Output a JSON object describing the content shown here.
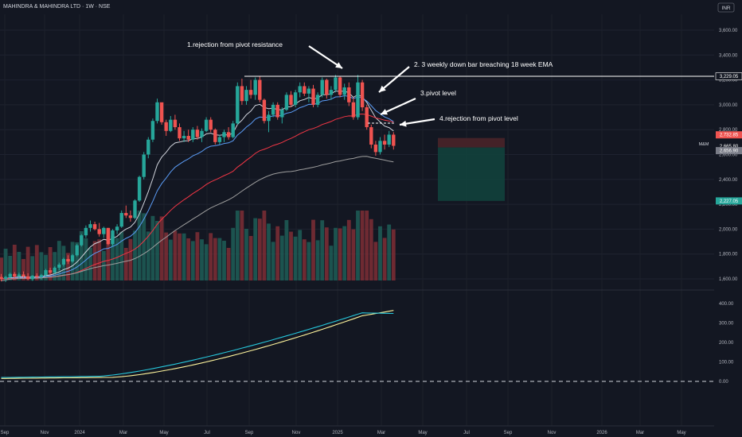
{
  "header": {
    "title": "MAHINDRA & MAHINDRA LTD · 1W · NSE",
    "currency": "INR",
    "symbol": "M&M"
  },
  "colors": {
    "bg": "#131722",
    "up": "#26a69a",
    "down": "#ef5350",
    "ema10": "#d1d4dc",
    "ema18": "#5b9cf6",
    "ema40": "#f23645",
    "ema100": "#9e9e9e",
    "rsiA": "#26c6da",
    "rsiB": "#fff59d"
  },
  "chart_data": {
    "type": "candlestick",
    "title": "MAHINDRA & MAHINDRA LTD · 1W · NSE",
    "price_axis": {
      "labels": [
        "3,600.00",
        "3,400.00",
        "3,200.00",
        "3,000.00",
        "2,800.00",
        "2,600.00",
        "2,400.00",
        "2,200.00",
        "2,000.00",
        "1,800.00",
        "1,600.00"
      ],
      "values": [
        3600,
        3400,
        3200,
        3000,
        2800,
        2600,
        2400,
        2200,
        2000,
        1800,
        1600
      ]
    },
    "indicator_axis": {
      "labels": [
        "400.00",
        "300.00",
        "200.00",
        "100.00",
        "0.00"
      ],
      "values": [
        400,
        300,
        200,
        100,
        0
      ]
    },
    "date_labels": [
      "Sep",
      "Nov",
      "2024",
      "Mar",
      "May",
      "Jul",
      "Sep",
      "Nov",
      "2025",
      "Mar",
      "May",
      "Jul",
      "Sep",
      "Nov",
      "2026",
      "Mar",
      "May"
    ],
    "price_tags": [
      {
        "label": "3,229.05",
        "value": 3229.05,
        "kind": "line"
      },
      {
        "label": "2,732.85",
        "value": 2732.85,
        "kind": "stop"
      },
      {
        "label": "2,665.80",
        "value": 2665.8,
        "kind": "last"
      },
      {
        "label": "2,656.90",
        "value": 2656.9,
        "kind": "entry"
      },
      {
        "label": "2,227.05",
        "value": 2227.05,
        "kind": "target"
      }
    ],
    "horizontal_line": 3229.05,
    "annotations": [
      {
        "text": "1.rejection from pivot resistance"
      },
      {
        "text": "2. 3 weekly down bar breaching 18 week EMA"
      },
      {
        "text": "3.pivot level"
      },
      {
        "text": "4.rejection from pivot  level"
      }
    ],
    "position": {
      "stop": 2732.85,
      "entry": 2656.9,
      "target": 2227.05
    },
    "candles": [
      [
        1615,
        1640,
        1580,
        1600
      ],
      [
        1600,
        1625,
        1575,
        1615
      ],
      [
        1615,
        1650,
        1600,
        1640
      ],
      [
        1640,
        1655,
        1605,
        1620
      ],
      [
        1620,
        1650,
        1600,
        1635
      ],
      [
        1635,
        1660,
        1610,
        1620
      ],
      [
        1620,
        1645,
        1590,
        1600
      ],
      [
        1600,
        1630,
        1585,
        1625
      ],
      [
        1625,
        1645,
        1600,
        1615
      ],
      [
        1615,
        1640,
        1595,
        1630
      ],
      [
        1630,
        1680,
        1615,
        1670
      ],
      [
        1670,
        1690,
        1640,
        1650
      ],
      [
        1650,
        1700,
        1640,
        1690
      ],
      [
        1690,
        1730,
        1670,
        1715
      ],
      [
        1715,
        1770,
        1700,
        1760
      ],
      [
        1760,
        1790,
        1720,
        1740
      ],
      [
        1740,
        1800,
        1730,
        1790
      ],
      [
        1790,
        1880,
        1780,
        1870
      ],
      [
        1870,
        1960,
        1860,
        1950
      ],
      [
        1950,
        2030,
        1930,
        2010
      ],
      [
        2010,
        2070,
        1980,
        2040
      ],
      [
        2040,
        2060,
        1990,
        2000
      ],
      [
        2000,
        2050,
        1940,
        1960
      ],
      [
        1960,
        2020,
        1930,
        2010
      ],
      [
        2010,
        2010,
        1870,
        1880
      ],
      [
        1880,
        2000,
        1860,
        1990
      ],
      [
        1990,
        2040,
        1960,
        2020
      ],
      [
        2020,
        2150,
        2010,
        2130
      ],
      [
        2130,
        2190,
        2090,
        2110
      ],
      [
        2110,
        2150,
        2060,
        2090
      ],
      [
        2090,
        2240,
        2080,
        2230
      ],
      [
        2230,
        2430,
        2220,
        2420
      ],
      [
        2420,
        2620,
        2400,
        2600
      ],
      [
        2600,
        2740,
        2570,
        2720
      ],
      [
        2720,
        2890,
        2700,
        2870
      ],
      [
        2870,
        3050,
        2850,
        3020
      ],
      [
        3020,
        3010,
        2840,
        2860
      ],
      [
        2860,
        2880,
        2750,
        2790
      ],
      [
        2790,
        2910,
        2780,
        2880
      ],
      [
        2880,
        2920,
        2800,
        2820
      ],
      [
        2820,
        2850,
        2710,
        2730
      ],
      [
        2730,
        2790,
        2700,
        2750
      ],
      [
        2750,
        2800,
        2700,
        2720
      ],
      [
        2720,
        2820,
        2700,
        2800
      ],
      [
        2800,
        2830,
        2720,
        2740
      ],
      [
        2740,
        2810,
        2700,
        2790
      ],
      [
        2790,
        2900,
        2780,
        2880
      ],
      [
        2880,
        2900,
        2780,
        2800
      ],
      [
        2800,
        2810,
        2680,
        2700
      ],
      [
        2700,
        2760,
        2680,
        2740
      ],
      [
        2740,
        2800,
        2700,
        2780
      ],
      [
        2780,
        2820,
        2720,
        2740
      ],
      [
        2740,
        2870,
        2730,
        2850
      ],
      [
        2850,
        3180,
        2840,
        3150
      ],
      [
        3150,
        3210,
        3000,
        3030
      ],
      [
        3030,
        3150,
        3000,
        3120
      ],
      [
        3120,
        3200,
        3050,
        3080
      ],
      [
        3080,
        3220,
        3040,
        3200
      ],
      [
        3200,
        3230,
        3020,
        3040
      ],
      [
        3040,
        3050,
        2850,
        2870
      ],
      [
        2870,
        2950,
        2780,
        2920
      ],
      [
        2920,
        3020,
        2900,
        3000
      ],
      [
        3000,
        3020,
        2880,
        2900
      ],
      [
        2900,
        2980,
        2850,
        2960
      ],
      [
        2960,
        3100,
        2950,
        3080
      ],
      [
        3080,
        3110,
        2980,
        3000
      ],
      [
        3000,
        3120,
        2980,
        3100
      ],
      [
        3100,
        3180,
        3060,
        3150
      ],
      [
        3150,
        3180,
        3070,
        3090
      ],
      [
        3090,
        3150,
        3020,
        3130
      ],
      [
        3130,
        3160,
        2980,
        3000
      ],
      [
        3000,
        3100,
        2980,
        3080
      ],
      [
        3080,
        3220,
        3060,
        3200
      ],
      [
        3200,
        3210,
        3050,
        3080
      ],
      [
        3080,
        3150,
        3040,
        3120
      ],
      [
        3120,
        3240,
        3100,
        3220
      ],
      [
        3220,
        3230,
        3060,
        3080
      ],
      [
        3080,
        3170,
        3040,
        3140
      ],
      [
        3140,
        3180,
        2990,
        3020
      ],
      [
        3020,
        3060,
        2880,
        2900
      ],
      [
        2900,
        3240,
        2880,
        3180
      ],
      [
        3180,
        3200,
        2950,
        2980
      ],
      [
        2980,
        3000,
        2800,
        2820
      ],
      [
        2820,
        2840,
        2650,
        2680
      ],
      [
        2680,
        2710,
        2590,
        2620
      ],
      [
        2620,
        2740,
        2600,
        2710
      ],
      [
        2710,
        2760,
        2640,
        2680
      ],
      [
        2680,
        2790,
        2660,
        2760
      ],
      [
        2760,
        2780,
        2640,
        2670
      ]
    ]
  }
}
